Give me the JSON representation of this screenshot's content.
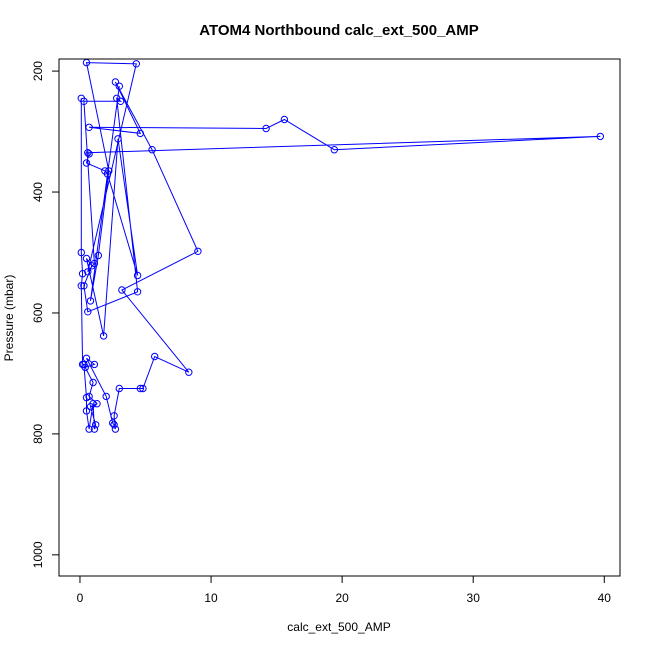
{
  "chart_data": {
    "type": "line",
    "title": "ATOM4 Northbound calc_ext_500_AMP",
    "xlabel": "calc_ext_500_AMP",
    "ylabel": "Pressure (mbar)",
    "xlim": [
      -1.6,
      41.2
    ],
    "ylim": [
      1035,
      180
    ],
    "y_reversed": true,
    "x_ticks": [
      0,
      10,
      20,
      30,
      40
    ],
    "y_ticks": [
      200,
      400,
      600,
      800,
      1000
    ],
    "grid": false,
    "color": "#0000ff",
    "series": [
      {
        "points": [
          [
            0.1,
            245
          ],
          [
            0.1,
            500
          ],
          [
            0.2,
            535
          ],
          [
            0.1,
            555
          ],
          [
            0.2,
            685
          ],
          [
            0.3,
            685
          ],
          [
            0.5,
            740
          ],
          [
            0.5,
            762
          ],
          [
            0.7,
            792
          ],
          [
            1.0,
            750
          ],
          [
            1.1,
            792
          ],
          [
            1.2,
            785
          ],
          [
            0.8,
            755
          ],
          [
            1.3,
            750
          ],
          [
            0.7,
            738
          ],
          [
            1.0,
            715
          ],
          [
            0.4,
            690
          ],
          [
            1.1,
            685
          ],
          [
            0.5,
            675
          ],
          [
            2.0,
            738
          ],
          [
            2.5,
            782
          ],
          [
            2.6,
            785
          ],
          [
            2.7,
            792
          ],
          [
            2.6,
            770
          ],
          [
            3.0,
            725
          ],
          [
            4.6,
            725
          ],
          [
            4.8,
            725
          ],
          [
            5.7,
            672
          ],
          [
            8.3,
            698
          ],
          [
            3.2,
            562
          ],
          [
            9.0,
            498
          ],
          [
            5.5,
            330
          ],
          [
            2.7,
            218
          ],
          [
            4.6,
            303
          ],
          [
            0.7,
            293
          ],
          [
            14.2,
            295
          ],
          [
            15.6,
            280
          ],
          [
            19.4,
            330
          ],
          [
            39.7,
            308
          ],
          [
            0.6,
            335
          ],
          [
            0.7,
            337
          ],
          [
            0.5,
            352
          ],
          [
            1.9,
            365
          ],
          [
            2.1,
            370
          ],
          [
            4.4,
            538
          ],
          [
            2.9,
            312
          ],
          [
            1.8,
            638
          ],
          [
            0.5,
            510
          ],
          [
            0.9,
            522
          ],
          [
            0.3,
            555
          ],
          [
            0.6,
            598
          ],
          [
            4.4,
            565
          ],
          [
            2.8,
            245
          ],
          [
            3.1,
            250
          ],
          [
            0.3,
            250
          ],
          [
            1.1,
            518
          ],
          [
            0.6,
            532
          ],
          [
            4.3,
            188
          ],
          [
            0.5,
            186
          ],
          [
            2.2,
            365
          ],
          [
            1.4,
            505
          ],
          [
            0.8,
            580
          ],
          [
            3.0,
            225
          ]
        ]
      }
    ]
  }
}
